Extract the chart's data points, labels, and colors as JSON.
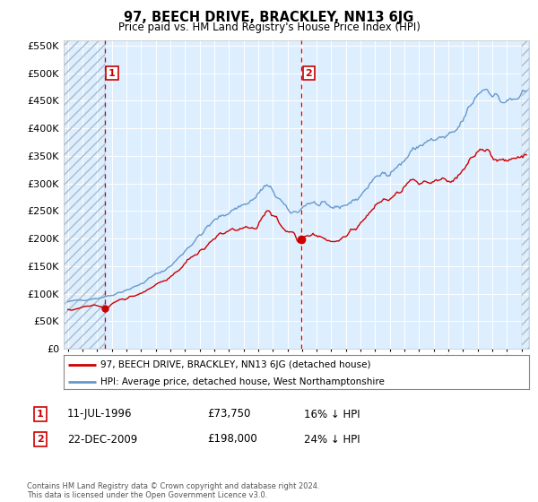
{
  "title": "97, BEECH DRIVE, BRACKLEY, NN13 6JG",
  "subtitle": "Price paid vs. HM Land Registry's House Price Index (HPI)",
  "legend_line1": "97, BEECH DRIVE, BRACKLEY, NN13 6JG (detached house)",
  "legend_line2": "HPI: Average price, detached house, West Northamptonshire",
  "annotation1_date": "11-JUL-1996",
  "annotation1_price": "£73,750",
  "annotation1_hpi": "16% ↓ HPI",
  "annotation2_date": "22-DEC-2009",
  "annotation2_price": "£198,000",
  "annotation2_hpi": "24% ↓ HPI",
  "copyright": "Contains HM Land Registry data © Crown copyright and database right 2024.\nThis data is licensed under the Open Government Licence v3.0.",
  "price_color": "#cc0000",
  "hpi_color": "#6699cc",
  "background_color": "#ddeeff",
  "ylim": [
    0,
    560000
  ],
  "yticks": [
    0,
    50000,
    100000,
    150000,
    200000,
    250000,
    300000,
    350000,
    400000,
    450000,
    500000,
    550000
  ],
  "sale1_x": 1996.53,
  "sale1_y": 73750,
  "sale2_x": 2009.97,
  "sale2_y": 198000,
  "xmin": 1993.7,
  "xmax": 2025.5
}
